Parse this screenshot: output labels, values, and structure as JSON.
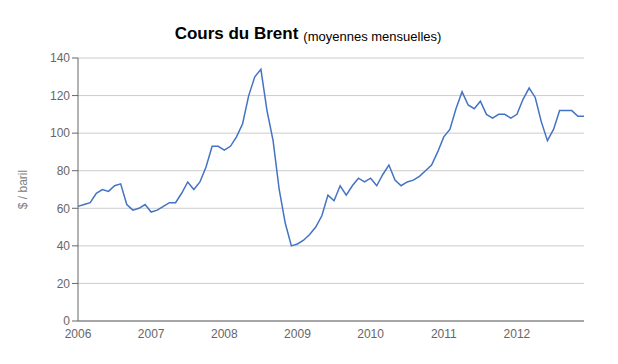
{
  "chart_data": {
    "type": "line",
    "title": "Cours du Brent",
    "subtitle": "(moyennes mensuelles)",
    "ylabel": "$ / baril",
    "color": "#4472C4",
    "grid": true,
    "ylim": [
      0,
      140
    ],
    "yticks": [
      0,
      20,
      40,
      60,
      80,
      100,
      120,
      140
    ],
    "categories": [
      "2006",
      null,
      null,
      null,
      null,
      null,
      null,
      null,
      null,
      null,
      null,
      null,
      "2007",
      null,
      null,
      null,
      null,
      null,
      null,
      null,
      null,
      null,
      null,
      null,
      "2008",
      null,
      null,
      null,
      null,
      null,
      null,
      null,
      null,
      null,
      null,
      null,
      "2009",
      null,
      null,
      null,
      null,
      null,
      null,
      null,
      null,
      null,
      null,
      null,
      "2010",
      null,
      null,
      null,
      null,
      null,
      null,
      null,
      null,
      null,
      null,
      null,
      "2011",
      null,
      null,
      null,
      null,
      null,
      null,
      null,
      null,
      null,
      null,
      null,
      "2012",
      null,
      null,
      null,
      null,
      null,
      null,
      null,
      null,
      null,
      null,
      null
    ],
    "values": [
      61,
      62,
      63,
      68,
      70,
      69,
      72,
      73,
      62,
      59,
      60,
      62,
      58,
      59,
      61,
      63,
      63,
      68,
      74,
      70,
      74,
      82,
      93,
      93,
      91,
      93,
      98,
      105,
      120,
      130,
      134,
      112,
      96,
      70,
      52,
      40,
      41,
      43,
      46,
      50,
      56,
      67,
      64,
      72,
      67,
      72,
      76,
      74,
      76,
      72,
      78,
      83,
      75,
      72,
      74,
      75,
      77,
      80,
      83,
      90,
      98,
      102,
      113,
      122,
      115,
      113,
      117,
      110,
      108,
      110,
      110,
      108,
      110,
      118,
      124,
      119,
      106,
      96,
      102,
      112,
      112,
      112,
      109,
      109
    ]
  }
}
